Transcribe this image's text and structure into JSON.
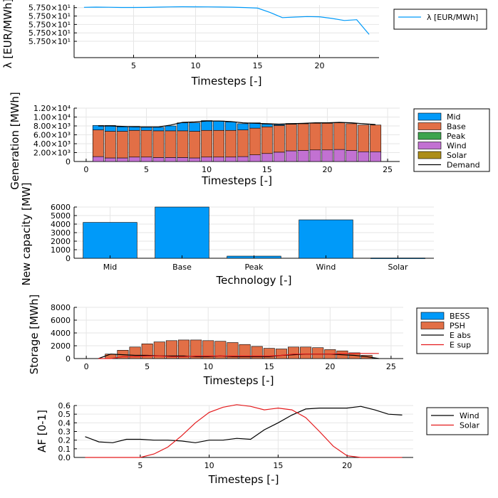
{
  "chart_data": [
    {
      "type": "line",
      "xlabel": "Timesteps [-]",
      "ylabel": "λ [EUR/MWh]",
      "x": [
        1,
        2,
        3,
        4,
        5,
        6,
        7,
        8,
        9,
        10,
        11,
        12,
        13,
        14,
        15,
        16,
        17,
        18,
        19,
        20,
        21,
        22,
        23,
        24
      ],
      "xticks": [
        5,
        10,
        15,
        20
      ],
      "ytick_labels": [
        "5.750×10¹",
        "5.750×10¹",
        "5.750×10¹",
        "5.750×10¹",
        "5.750×10¹"
      ],
      "ylim": [
        0,
        1
      ],
      "series": [
        {
          "name": "λ [EUR/MWh]",
          "color": "#009AF9",
          "values": [
            0.955,
            0.96,
            0.957,
            0.953,
            0.953,
            0.954,
            0.96,
            0.963,
            0.966,
            0.965,
            0.963,
            0.961,
            0.958,
            0.952,
            0.94,
            0.86,
            0.76,
            0.77,
            0.78,
            0.776,
            0.745,
            0.705,
            0.72,
            0.44
          ]
        }
      ],
      "legend": "right"
    },
    {
      "type": "bar",
      "stacked": true,
      "xlabel": "Timesteps [-]",
      "ylabel": "Generation [MWh]",
      "x": [
        1,
        2,
        3,
        4,
        5,
        6,
        7,
        8,
        9,
        10,
        11,
        12,
        13,
        14,
        15,
        16,
        17,
        18,
        19,
        20,
        21,
        22,
        23,
        24
      ],
      "xticks": [
        0,
        5,
        10,
        15,
        20,
        25
      ],
      "ytick_labels": [
        "0",
        "2.00×10³",
        "4.00×10³",
        "6.00×10³",
        "8.00×10³",
        "1.00×10⁴",
        "1.20×10⁴"
      ],
      "ylim": [
        0,
        12000
      ],
      "series": [
        {
          "name": "Mid",
          "color": "#009AF9",
          "values": [
            1000,
            1300,
            1000,
            900,
            700,
            800,
            1100,
            1800,
            1900,
            2200,
            2100,
            1900,
            1400,
            1200,
            600,
            200,
            150,
            50,
            0,
            0,
            0,
            0,
            0,
            0
          ]
        },
        {
          "name": "Base",
          "color": "#E26F46",
          "values": [
            6000,
            6000,
            6000,
            6000,
            6000,
            6000,
            6000,
            6000,
            6000,
            6000,
            6000,
            6000,
            6000,
            6000,
            6000,
            6000,
            6000,
            6000,
            6000,
            6000,
            6000,
            6000,
            6000,
            6000
          ]
        },
        {
          "name": "Peak",
          "color": "#3DA44D",
          "values": [
            0,
            0,
            0,
            0,
            0,
            0,
            0,
            0,
            0,
            0,
            0,
            0,
            0,
            0,
            0,
            0,
            0,
            0,
            0,
            0,
            0,
            0,
            0,
            0
          ]
        },
        {
          "name": "Wind",
          "color": "#C271D2",
          "values": [
            1100,
            800,
            800,
            1000,
            1000,
            900,
            900,
            900,
            800,
            1000,
            1000,
            1000,
            1100,
            1500,
            1800,
            2100,
            2400,
            2500,
            2600,
            2600,
            2700,
            2500,
            2200,
            2200
          ]
        },
        {
          "name": "Solar",
          "color": "#AC8D18",
          "values": [
            0,
            0,
            0,
            0,
            0,
            0,
            0,
            0,
            0,
            0,
            0,
            0,
            0,
            0,
            0,
            0,
            0,
            0,
            0,
            0,
            0,
            0,
            0,
            0
          ]
        }
      ],
      "line_series": [
        {
          "name": "Demand",
          "color": "#000000",
          "values": [
            8000,
            8000,
            7900,
            7800,
            7800,
            7800,
            8200,
            8800,
            8900,
            9100,
            9100,
            9000,
            8700,
            8600,
            8500,
            8400,
            8500,
            8600,
            8700,
            8700,
            8800,
            8700,
            8500,
            8300
          ]
        }
      ],
      "legend": "right"
    },
    {
      "type": "bar",
      "xlabel": "Technology [-]",
      "ylabel": "New capacity [MW]",
      "categories": [
        "Mid",
        "Base",
        "Peak",
        "Wind",
        "Solar"
      ],
      "values": [
        4200,
        6000,
        250,
        4500,
        30
      ],
      "yticks": [
        0,
        1000,
        2000,
        3000,
        4000,
        5000,
        6000
      ],
      "ylim": [
        0,
        6000
      ],
      "color": "#009AF9"
    },
    {
      "type": "bar",
      "stacked": true,
      "xlabel": "Timesteps [-]",
      "ylabel": "Storage [MWh]",
      "x": [
        1,
        2,
        3,
        4,
        5,
        6,
        7,
        8,
        9,
        10,
        11,
        12,
        13,
        14,
        15,
        16,
        17,
        18,
        19,
        20,
        21,
        22,
        23,
        24
      ],
      "xticks": [
        0,
        5,
        10,
        15,
        20,
        25
      ],
      "yticks": [
        0,
        2000,
        4000,
        6000,
        8000
      ],
      "ylim": [
        0,
        8000
      ],
      "series": [
        {
          "name": "BESS",
          "color": "#009AF9",
          "values": [
            0,
            0,
            0,
            0,
            0,
            0,
            0,
            0,
            0,
            0,
            0,
            0,
            0,
            0,
            0,
            0,
            0,
            0,
            0,
            0,
            0,
            0,
            0,
            0
          ]
        },
        {
          "name": "PSH",
          "color": "#E26F46",
          "values": [
            0,
            700,
            1300,
            1800,
            2300,
            2600,
            2800,
            2900,
            2900,
            2800,
            2700,
            2500,
            2200,
            1900,
            1600,
            1500,
            1800,
            1800,
            1700,
            1400,
            1200,
            900,
            500,
            0
          ]
        }
      ],
      "line_series": [
        {
          "name": "E abs",
          "color": "#000000",
          "values": [
            0,
            700,
            600,
            500,
            500,
            400,
            400,
            400,
            300,
            300,
            400,
            300,
            300,
            300,
            300,
            500,
            600,
            700,
            700,
            700,
            600,
            500,
            300,
            0
          ]
        },
        {
          "name": "E sup",
          "color": "#E41A1C",
          "values": [
            0,
            0,
            300,
            300,
            400,
            400,
            300,
            300,
            400,
            400,
            400,
            400,
            400,
            400,
            400,
            500,
            700,
            700,
            700,
            700,
            800,
            800,
            800,
            800
          ]
        }
      ],
      "legend": "right"
    },
    {
      "type": "line",
      "xlabel": "Timesteps [-]",
      "ylabel": "AF [0-1]",
      "x": [
        1,
        2,
        3,
        4,
        5,
        6,
        7,
        8,
        9,
        10,
        11,
        12,
        13,
        14,
        15,
        16,
        17,
        18,
        19,
        20,
        21,
        22,
        23,
        24
      ],
      "xticks": [
        5,
        10,
        15,
        20
      ],
      "yticks": [
        0.0,
        0.1,
        0.2,
        0.3,
        0.4,
        0.5,
        0.6
      ],
      "ylim": [
        0,
        0.6
      ],
      "series": [
        {
          "name": "Wind",
          "color": "#000000",
          "values": [
            0.24,
            0.18,
            0.17,
            0.21,
            0.21,
            0.2,
            0.2,
            0.19,
            0.17,
            0.2,
            0.2,
            0.22,
            0.21,
            0.32,
            0.4,
            0.49,
            0.56,
            0.57,
            0.57,
            0.57,
            0.59,
            0.55,
            0.5,
            0.49
          ]
        },
        {
          "name": "Solar",
          "color": "#E41A1C",
          "values": [
            0,
            0,
            0,
            0,
            0,
            0.04,
            0.12,
            0.25,
            0.4,
            0.52,
            0.58,
            0.61,
            0.59,
            0.55,
            0.57,
            0.55,
            0.46,
            0.3,
            0.13,
            0.02,
            0,
            0,
            0,
            0
          ]
        }
      ],
      "legend": "right"
    }
  ]
}
